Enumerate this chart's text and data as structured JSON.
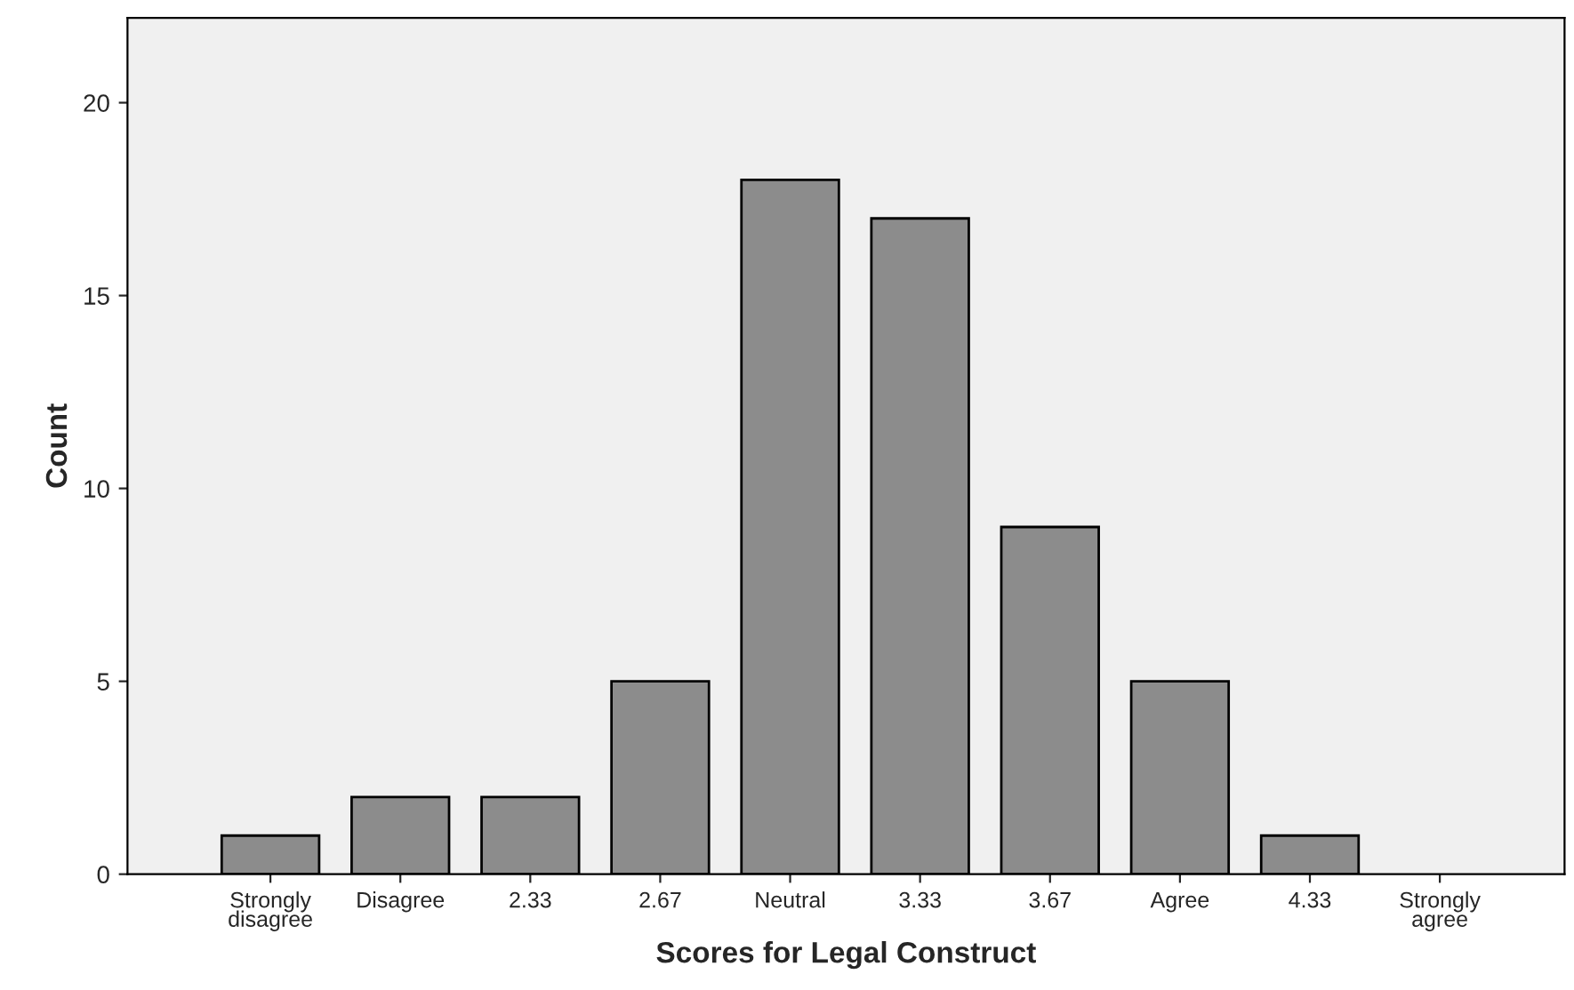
{
  "chart_data": {
    "type": "bar",
    "xlabel": "Scores for Legal Construct",
    "ylabel": "Count",
    "categories": [
      "Strongly\ndisagree",
      "Disagree",
      "2.33",
      "2.67",
      "Neutral",
      "3.33",
      "3.67",
      "Agree",
      "4.33",
      "Strongly\nagree"
    ],
    "values": [
      1,
      2,
      2,
      5,
      18,
      17,
      9,
      5,
      1,
      0
    ],
    "color": "#8c8c8c",
    "ylim": [
      0,
      22.2
    ],
    "yticks": [
      0,
      5,
      10,
      15,
      20
    ],
    "grid": false
  }
}
